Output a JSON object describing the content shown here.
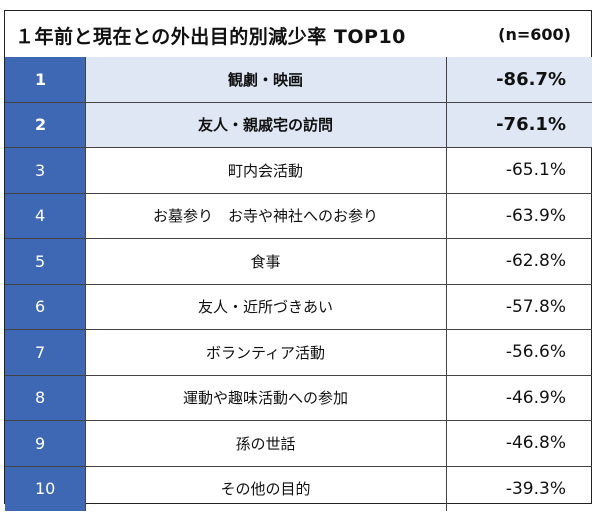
{
  "title": "１年前と現在との外出目的別減少率 TOP10",
  "sample_note": "(n=600)",
  "chart_data": {
    "type": "table",
    "title": "１年前と現在との外出目的別減少率 TOP10",
    "sample_size": "(n=600)",
    "columns": [
      "rank",
      "purpose",
      "decline_rate"
    ],
    "rows": [
      {
        "rank": "1",
        "purpose": "観劇・映画",
        "value": -86.7,
        "label": "-86.7%",
        "highlight": true
      },
      {
        "rank": "2",
        "purpose": "友人・親戚宅の訪問",
        "value": -76.1,
        "label": "-76.1%",
        "highlight": true
      },
      {
        "rank": "3",
        "purpose": "町内会活動",
        "value": -65.1,
        "label": "-65.1%",
        "highlight": false
      },
      {
        "rank": "4",
        "purpose": "お墓参り　お寺や神社へのお参り",
        "value": -63.9,
        "label": "-63.9%",
        "highlight": false
      },
      {
        "rank": "5",
        "purpose": "食事",
        "value": -62.8,
        "label": "-62.8%",
        "highlight": false
      },
      {
        "rank": "6",
        "purpose": "友人・近所づきあい",
        "value": -57.8,
        "label": "-57.8%",
        "highlight": false
      },
      {
        "rank": "7",
        "purpose": "ボランティア活動",
        "value": -56.6,
        "label": "-56.6%",
        "highlight": false
      },
      {
        "rank": "8",
        "purpose": "運動や趣味活動への参加",
        "value": -46.9,
        "label": "-46.9%",
        "highlight": false
      },
      {
        "rank": "9",
        "purpose": "孫の世話",
        "value": -46.8,
        "label": "-46.8%",
        "highlight": false
      },
      {
        "rank": "10",
        "purpose": "その他の目的",
        "value": -39.3,
        "label": "-39.3%",
        "highlight": false
      }
    ],
    "colors": {
      "rank_background": "#3e68b4",
      "rank_text": "#ffffff",
      "highlight_background": "#dfe7f5"
    }
  }
}
